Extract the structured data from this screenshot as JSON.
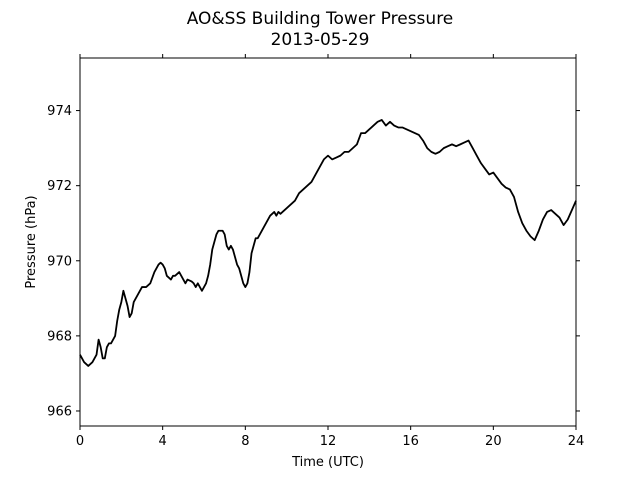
{
  "chart_data": {
    "type": "line",
    "title": "AO&SS Building Tower Pressure",
    "subtitle": "2013-05-29",
    "xlabel": "Time (UTC)",
    "ylabel": "Pressure (hPa)",
    "xlim": [
      0,
      24
    ],
    "ylim": [
      965.6,
      975.4
    ],
    "xticks": [
      0,
      4,
      8,
      12,
      16,
      20,
      24
    ],
    "yticks": [
      966,
      968,
      970,
      972,
      974
    ],
    "grid": false,
    "line_color": "#000000",
    "series": [
      {
        "x": [
          0,
          0.2,
          0.4,
          0.6,
          0.8,
          0.9,
          1.0,
          1.1,
          1.2,
          1.3,
          1.4,
          1.5,
          1.7,
          1.8,
          1.9,
          2.0,
          2.1,
          2.2,
          2.3,
          2.4,
          2.5,
          2.6,
          2.8,
          3.0,
          3.2,
          3.4,
          3.6,
          3.8,
          3.9,
          4.0,
          4.1,
          4.2,
          4.3,
          4.4,
          4.5,
          4.6,
          4.8,
          4.9,
          5.0,
          5.1,
          5.2,
          5.4,
          5.5,
          5.6,
          5.7,
          5.8,
          5.9,
          6.0,
          6.1,
          6.2,
          6.3,
          6.4,
          6.5,
          6.6,
          6.7,
          6.8,
          6.9,
          7.0,
          7.1,
          7.2,
          7.3,
          7.4,
          7.5,
          7.6,
          7.7,
          7.8,
          7.9,
          8.0,
          8.1,
          8.2,
          8.3,
          8.4,
          8.5,
          8.6,
          8.7,
          8.8,
          8.9,
          9.0,
          9.1,
          9.2,
          9.3,
          9.4,
          9.5,
          9.6,
          9.7,
          9.8,
          9.9,
          10.0,
          10.1,
          10.2,
          10.4,
          10.6,
          10.8,
          11.0,
          11.2,
          11.4,
          11.6,
          11.8,
          12.0,
          12.2,
          12.4,
          12.6,
          12.8,
          13.0,
          13.2,
          13.4,
          13.6,
          13.8,
          14.0,
          14.2,
          14.4,
          14.6,
          14.8,
          15.0,
          15.2,
          15.4,
          15.6,
          15.8,
          16.0,
          16.2,
          16.4,
          16.6,
          16.8,
          17.0,
          17.2,
          17.4,
          17.6,
          17.8,
          18.0,
          18.2,
          18.4,
          18.6,
          18.8,
          19.0,
          19.2,
          19.4,
          19.6,
          19.8,
          20.0,
          20.2,
          20.4,
          20.6,
          20.8,
          21.0,
          21.2,
          21.4,
          21.6,
          21.8,
          22.0,
          22.2,
          22.4,
          22.6,
          22.8,
          23.0,
          23.2,
          23.4,
          23.6,
          23.8,
          24.0
        ],
        "y": [
          967.5,
          967.3,
          967.2,
          967.3,
          967.5,
          967.9,
          967.7,
          967.4,
          967.4,
          967.7,
          967.8,
          967.8,
          968.0,
          968.4,
          968.7,
          968.9,
          969.2,
          969.0,
          968.8,
          968.5,
          968.6,
          968.9,
          969.1,
          969.3,
          969.3,
          969.4,
          969.7,
          969.9,
          969.95,
          969.9,
          969.8,
          969.6,
          969.55,
          969.5,
          969.6,
          969.6,
          969.7,
          969.6,
          969.5,
          969.4,
          969.5,
          969.45,
          969.4,
          969.3,
          969.4,
          969.3,
          969.2,
          969.3,
          969.4,
          969.6,
          969.9,
          970.3,
          970.5,
          970.7,
          970.8,
          970.8,
          970.8,
          970.7,
          970.4,
          970.3,
          970.4,
          970.3,
          970.1,
          969.9,
          969.8,
          969.6,
          969.4,
          969.3,
          969.4,
          969.7,
          970.2,
          970.4,
          970.6,
          970.6,
          970.7,
          970.8,
          970.9,
          971.0,
          971.1,
          971.2,
          971.25,
          971.3,
          971.2,
          971.3,
          971.25,
          971.3,
          971.35,
          971.4,
          971.45,
          971.5,
          971.6,
          971.8,
          971.9,
          972.0,
          972.1,
          972.3,
          972.5,
          972.7,
          972.8,
          972.7,
          972.75,
          972.8,
          972.9,
          972.9,
          973.0,
          973.1,
          973.4,
          973.4,
          973.5,
          973.6,
          973.7,
          973.75,
          973.6,
          973.7,
          973.6,
          973.55,
          973.55,
          973.5,
          973.45,
          973.4,
          973.35,
          973.2,
          973.0,
          972.9,
          972.85,
          972.9,
          973.0,
          973.05,
          973.1,
          973.05,
          973.1,
          973.15,
          973.2,
          973.0,
          972.8,
          972.6,
          972.45,
          972.3,
          972.35,
          972.2,
          972.05,
          971.95,
          971.9,
          971.7,
          971.3,
          971.0,
          970.8,
          970.65,
          970.55,
          970.8,
          971.1,
          971.3,
          971.35,
          971.25,
          971.15,
          970.95,
          971.1,
          971.35,
          971.6
        ]
      }
    ]
  }
}
